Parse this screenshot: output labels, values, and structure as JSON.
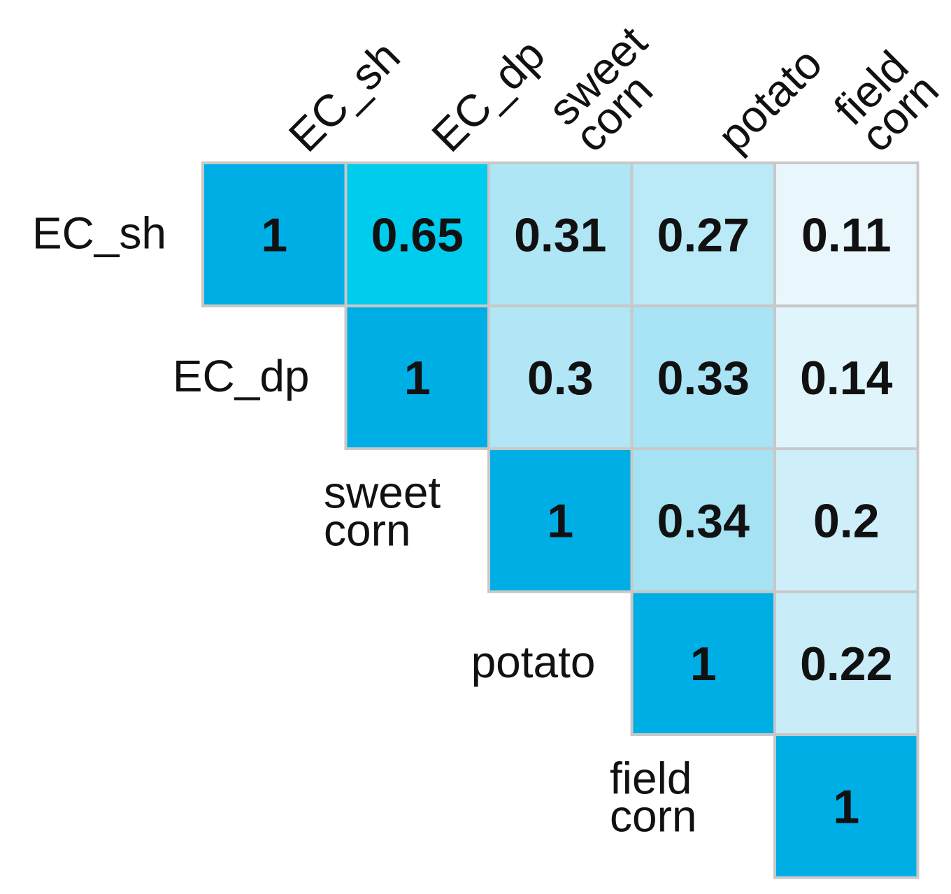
{
  "chart_data": {
    "type": "heatmap",
    "variables": [
      {
        "name": "EC_sh",
        "lines": [
          "EC_sh"
        ]
      },
      {
        "name": "EC_dp",
        "lines": [
          "EC_dp"
        ]
      },
      {
        "name": "sweet corn",
        "lines": [
          "sweet",
          "corn"
        ]
      },
      {
        "name": "potato",
        "lines": [
          "potato"
        ]
      },
      {
        "name": "field corn",
        "lines": [
          "field",
          "corn"
        ]
      }
    ],
    "matrix": [
      [
        1,
        0.65,
        0.31,
        0.27,
        0.11
      ],
      [
        null,
        1,
        0.3,
        0.33,
        0.14
      ],
      [
        null,
        null,
        1,
        0.34,
        0.2
      ],
      [
        null,
        null,
        null,
        1,
        0.22
      ],
      [
        null,
        null,
        null,
        null,
        1
      ]
    ],
    "value_labels": [
      [
        "1",
        "0.65",
        "0.31",
        "0.27",
        "0.11"
      ],
      [
        null,
        "1",
        "0.3",
        "0.33",
        "0.14"
      ],
      [
        null,
        null,
        "1",
        "0.34",
        "0.2"
      ],
      [
        null,
        null,
        null,
        "1",
        "0.22"
      ],
      [
        null,
        null,
        null,
        null,
        "1"
      ]
    ],
    "layout": "upper-triangle",
    "colors": {
      "diagonal": "#00AEE6",
      "high": "#00CCEE",
      "cell_border": "#C8C8C8"
    }
  }
}
